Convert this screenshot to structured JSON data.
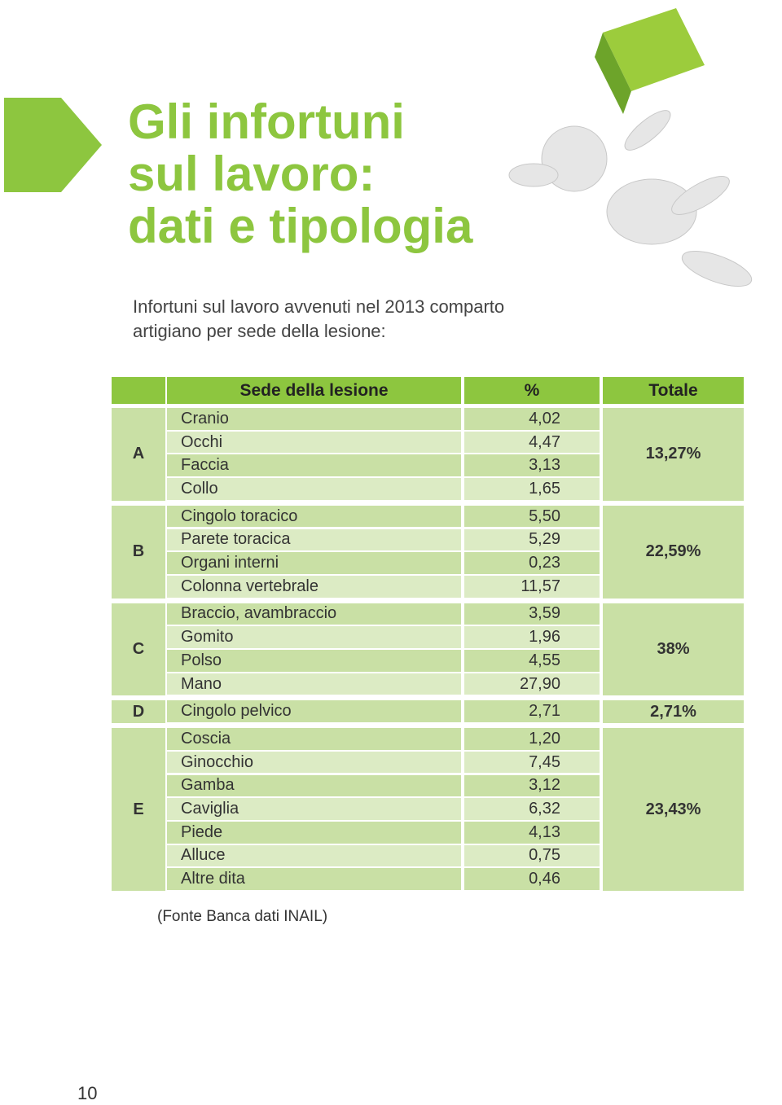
{
  "header": {
    "title_lines": [
      "Gli infortuni",
      "sul lavoro:",
      "dati e tipologia"
    ],
    "subtitle_lines": [
      "Infortuni sul lavoro avvenuti nel 2013 comparto",
      "artigiano per sede della lesione:"
    ]
  },
  "table": {
    "columns": [
      "Sede della lesione",
      "%",
      "Totale"
    ],
    "groups": [
      {
        "letter": "A",
        "total": "13,27%",
        "rows": [
          [
            "Cranio",
            "4,02"
          ],
          [
            "Occhi",
            "4,47"
          ],
          [
            "Faccia",
            "3,13"
          ],
          [
            "Collo",
            "1,65"
          ]
        ]
      },
      {
        "letter": "B",
        "total": "22,59%",
        "rows": [
          [
            "Cingolo toracico",
            "5,50"
          ],
          [
            "Parete toracica",
            "5,29"
          ],
          [
            "Organi interni",
            "0,23"
          ],
          [
            "Colonna vertebrale",
            "11,57"
          ]
        ]
      },
      {
        "letter": "C",
        "total": "38%",
        "rows": [
          [
            "Braccio, avambraccio",
            "3,59"
          ],
          [
            "Gomito",
            "1,96"
          ],
          [
            "Polso",
            "4,55"
          ],
          [
            "Mano",
            "27,90"
          ]
        ]
      },
      {
        "letter": "D",
        "total": "2,71%",
        "rows": [
          [
            "Cingolo pelvico",
            "2,71"
          ]
        ]
      },
      {
        "letter": "E",
        "total": "23,43%",
        "rows": [
          [
            "Coscia",
            "1,20"
          ],
          [
            "Ginocchio",
            "7,45"
          ],
          [
            "Gamba",
            "3,12"
          ],
          [
            "Caviglia",
            "6,32"
          ],
          [
            "Piede",
            "4,13"
          ],
          [
            "Alluce",
            "0,75"
          ],
          [
            "Altre dita",
            "0,46"
          ]
        ]
      }
    ]
  },
  "footnote": "(Fonte Banca dati INAIL)",
  "page_number": "10"
}
